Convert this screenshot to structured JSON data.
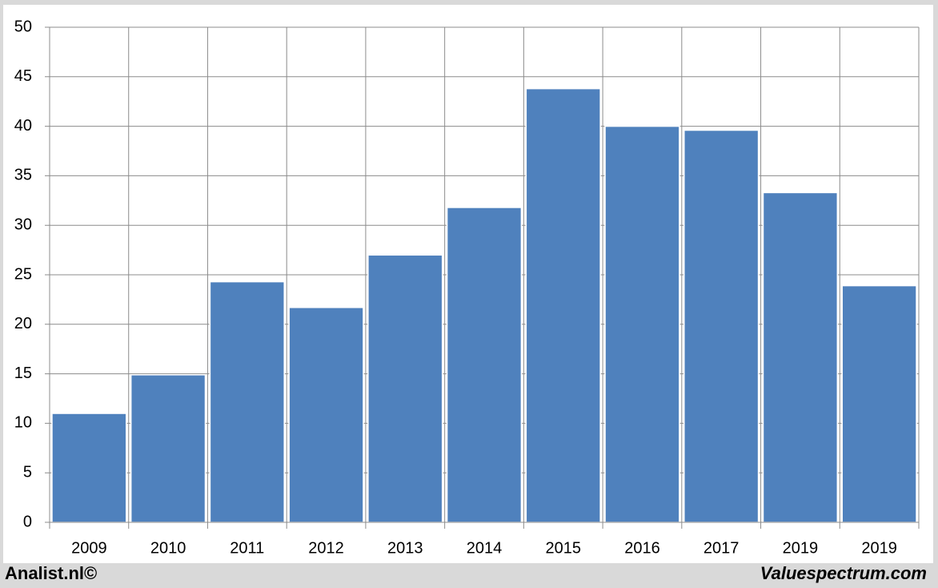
{
  "chart_data": {
    "type": "bar",
    "categories": [
      "2009",
      "2010",
      "2011",
      "2012",
      "2013",
      "2014",
      "2015",
      "2016",
      "2017",
      "2019",
      "2019"
    ],
    "values": [
      11.0,
      14.9,
      24.3,
      21.7,
      27.0,
      31.8,
      43.8,
      40.0,
      39.6,
      33.3,
      23.9
    ],
    "color": "#4f81bd",
    "ylim": [
      0,
      50
    ],
    "yticks": [
      0,
      5,
      10,
      15,
      20,
      25,
      30,
      35,
      40,
      45,
      50
    ],
    "grid": true
  },
  "footer": {
    "left": "Analist.nl©",
    "right": "Valuespectrum.com"
  }
}
